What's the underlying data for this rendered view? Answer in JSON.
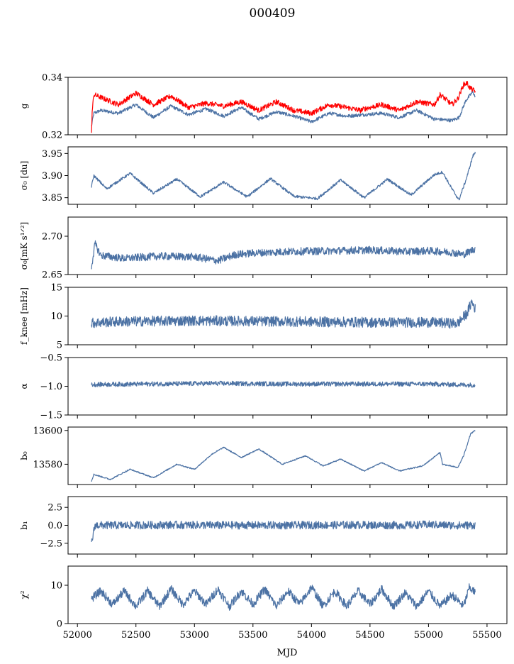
{
  "figure": {
    "title": "000409",
    "xlabel": "MJD",
    "xlim": [
      51920,
      55670
    ],
    "xticks": [
      52000,
      52500,
      53000,
      53500,
      54000,
      54500,
      55000,
      55500
    ],
    "series_colors": {
      "blue": "#4c72a4",
      "red": "#ff0000"
    }
  },
  "chart_data": [
    {
      "type": "line",
      "id": "g",
      "ylabel": "g",
      "ylabel_tex": "g",
      "ylim": [
        0.32,
        0.34
      ],
      "yticks": [
        0.32,
        0.34
      ],
      "ytick_labels": [
        "0.32",
        "0.34"
      ],
      "series": [
        {
          "name": "g-blue",
          "color": "#4c72a4",
          "noise": 0.0006,
          "x": [
            52120,
            52140,
            52200,
            52350,
            52500,
            52650,
            52800,
            52950,
            53100,
            53250,
            53400,
            53550,
            53700,
            53850,
            54000,
            54150,
            54300,
            54450,
            54600,
            54750,
            54900,
            55050,
            55200,
            55260,
            55320,
            55380,
            55400
          ],
          "y": [
            0.323,
            0.3275,
            0.3285,
            0.3275,
            0.3305,
            0.326,
            0.33,
            0.327,
            0.329,
            0.3265,
            0.3295,
            0.3255,
            0.328,
            0.3265,
            0.3245,
            0.3275,
            0.3265,
            0.327,
            0.3275,
            0.326,
            0.3285,
            0.3255,
            0.325,
            0.326,
            0.332,
            0.335,
            0.333
          ]
        },
        {
          "name": "g-red",
          "color": "#ff0000",
          "noise": 0.0009,
          "width": 2,
          "x": [
            52120,
            52125,
            52140,
            52200,
            52350,
            52500,
            52650,
            52800,
            52950,
            53100,
            53250,
            53400,
            53550,
            53700,
            53850,
            54000,
            54150,
            54300,
            54420,
            54450,
            54600,
            54750,
            54900,
            55050,
            55100,
            55200,
            55250,
            55300,
            55330,
            55350,
            55400
          ],
          "y": [
            0.32,
            0.3275,
            0.334,
            0.333,
            0.3305,
            0.3345,
            0.3305,
            0.3335,
            0.3295,
            0.331,
            0.33,
            0.3315,
            0.3285,
            0.3315,
            0.3285,
            0.3275,
            0.3305,
            0.3295,
            0.3285,
            0.329,
            0.3305,
            0.3285,
            0.3315,
            0.3305,
            0.334,
            0.3305,
            0.3325,
            0.3375,
            0.338,
            0.3365,
            0.335
          ]
        }
      ]
    },
    {
      "type": "line",
      "id": "sigma0-du",
      "ylabel": "σ0 [du]",
      "ylabel_tex": "σ₀ [du]",
      "ylim": [
        3.835,
        3.965
      ],
      "yticks": [
        3.85,
        3.9,
        3.95
      ],
      "ytick_labels": [
        "3.85",
        "3.90",
        "3.95"
      ],
      "series": [
        {
          "name": "sigma0-du",
          "color": "#4c72a4",
          "noise": 0.003,
          "x": [
            52120,
            52140,
            52250,
            52450,
            52650,
            52850,
            53050,
            53250,
            53450,
            53650,
            53850,
            54050,
            54250,
            54450,
            54650,
            54850,
            55050,
            55120,
            55200,
            55260,
            55320,
            55380,
            55400
          ],
          "y": [
            3.875,
            3.9,
            3.87,
            3.905,
            3.86,
            3.892,
            3.852,
            3.885,
            3.852,
            3.893,
            3.853,
            3.848,
            3.89,
            3.85,
            3.892,
            3.856,
            3.902,
            3.908,
            3.87,
            3.845,
            3.89,
            3.945,
            3.952
          ]
        }
      ]
    },
    {
      "type": "line",
      "id": "sigma0-mk",
      "ylabel": "σ0[mK s1/2]",
      "ylabel_tex": "σ₀[mK s¹ᐟ²]",
      "ylim": [
        2.65,
        2.725
      ],
      "yticks": [
        2.65,
        2.7
      ],
      "ytick_labels": [
        "2.65",
        "2.70"
      ],
      "series": [
        {
          "name": "sigma0-mk",
          "color": "#4c72a4",
          "noise": 0.005,
          "x": [
            52120,
            52150,
            52200,
            52400,
            52700,
            53000,
            53200,
            53350,
            53500,
            53800,
            54200,
            54500,
            54800,
            55000,
            55200,
            55300,
            55400
          ],
          "y": [
            2.66,
            2.69,
            2.675,
            2.671,
            2.674,
            2.673,
            2.668,
            2.676,
            2.678,
            2.68,
            2.681,
            2.682,
            2.68,
            2.681,
            2.679,
            2.676,
            2.684
          ]
        }
      ]
    },
    {
      "type": "line",
      "id": "fknee",
      "ylabel": "fknee [mHz]",
      "ylabel_tex": "f_knee [mHz]",
      "ylim": [
        5,
        15
      ],
      "yticks": [
        5,
        10,
        15
      ],
      "ytick_labels": [
        "5",
        "10",
        "15"
      ],
      "series": [
        {
          "name": "fknee",
          "color": "#4c72a4",
          "noise": 0.9,
          "x": [
            52120,
            52300,
            52600,
            53000,
            53500,
            54000,
            54500,
            55000,
            55250,
            55330,
            55370,
            55400
          ],
          "y": [
            8.8,
            9.0,
            9.1,
            9.2,
            9.1,
            9.0,
            8.9,
            8.9,
            8.7,
            10.5,
            12.5,
            11.2
          ]
        }
      ]
    },
    {
      "type": "line",
      "id": "alpha",
      "ylabel": "α",
      "ylabel_tex": "α",
      "ylim": [
        -1.5,
        -0.5
      ],
      "yticks": [
        -1.5,
        -1.0,
        -0.5
      ],
      "ytick_labels": [
        "−1.5",
        "−1.0",
        "−0.5"
      ],
      "series": [
        {
          "name": "alpha",
          "color": "#4c72a4",
          "noise": 0.04,
          "x": [
            52120,
            52600,
            53200,
            53800,
            54400,
            55000,
            55400
          ],
          "y": [
            -0.97,
            -0.96,
            -0.95,
            -0.96,
            -0.96,
            -0.96,
            -0.98
          ]
        }
      ]
    },
    {
      "type": "line",
      "id": "b0",
      "ylabel": "b0",
      "ylabel_tex": "b₀",
      "ylim": [
        13568,
        13602
      ],
      "yticks": [
        13580,
        13600
      ],
      "ytick_labels": [
        "13580",
        "13600"
      ],
      "series": [
        {
          "name": "b0",
          "color": "#4c72a4",
          "noise": 0.35,
          "x": [
            52120,
            52140,
            52280,
            52450,
            52650,
            52850,
            53000,
            53150,
            53250,
            53400,
            53550,
            53750,
            53950,
            54100,
            54250,
            54450,
            54600,
            54750,
            54950,
            55100,
            55120,
            55250,
            55300,
            55360,
            55400
          ],
          "y": [
            13570,
            13574,
            13571,
            13577,
            13572,
            13580,
            13577,
            13586,
            13590,
            13584,
            13589,
            13580,
            13585,
            13579,
            13583,
            13576,
            13581,
            13576,
            13579,
            13587,
            13580,
            13578,
            13585,
            13598,
            13600
          ]
        }
      ]
    },
    {
      "type": "line",
      "id": "b1",
      "ylabel": "b1",
      "ylabel_tex": "b₁",
      "ylim": [
        -4,
        4
      ],
      "yticks": [
        -2.5,
        0.0,
        2.5
      ],
      "ytick_labels": [
        "−2.5",
        "0.0",
        "2.5"
      ],
      "series": [
        {
          "name": "b1",
          "color": "#4c72a4",
          "noise": 0.55,
          "x": [
            52120,
            52150,
            52400,
            52800,
            53300,
            53800,
            54300,
            54800,
            55000,
            55200,
            55300,
            55380,
            55400
          ],
          "y": [
            -2.5,
            0.0,
            0.0,
            0.05,
            0.0,
            0.0,
            0.05,
            0.0,
            0.1,
            0.0,
            0.0,
            0.0,
            0.0
          ]
        }
      ]
    },
    {
      "type": "line",
      "id": "chi2",
      "ylabel": "χ2",
      "ylabel_tex": "χ²",
      "ylim": [
        0,
        15
      ],
      "yticks": [
        0,
        10
      ],
      "ytick_labels": [
        "0",
        "10"
      ],
      "series": [
        {
          "name": "chi2",
          "color": "#4c72a4",
          "noise": 1.1,
          "x": [
            52120,
            52200,
            52300,
            52400,
            52500,
            52600,
            52700,
            52800,
            52900,
            53000,
            53100,
            53200,
            53300,
            53400,
            53500,
            53600,
            53700,
            53800,
            53900,
            54000,
            54100,
            54200,
            54300,
            54400,
            54500,
            54600,
            54700,
            54800,
            54900,
            55000,
            55100,
            55200,
            55300,
            55350,
            55400
          ],
          "y": [
            6.5,
            8.5,
            5,
            8.5,
            4.5,
            8.5,
            4.5,
            9,
            5,
            8.5,
            5,
            9,
            4.5,
            8.5,
            5,
            9,
            4.5,
            8.5,
            5,
            9.5,
            4.5,
            8.5,
            4.5,
            8.5,
            5,
            9,
            4.5,
            8,
            4.5,
            8.5,
            4.5,
            7.5,
            4.5,
            9.5,
            8
          ]
        }
      ]
    }
  ]
}
